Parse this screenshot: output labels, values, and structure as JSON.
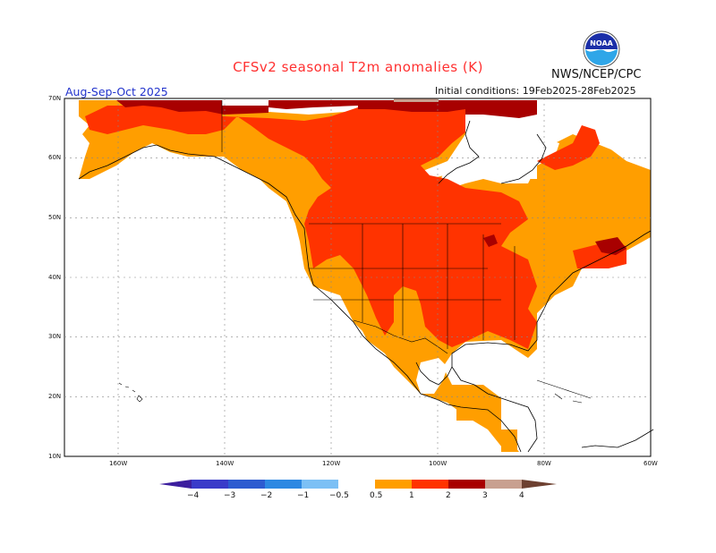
{
  "header": {
    "title": "CFSv2 seasonal T2m anomalies (K)",
    "agency": "NWS/NCEP/CPC",
    "period": "Aug-Sep-Oct 2025",
    "initial_conditions": "Initial conditions: 19Feb2025-28Feb2025",
    "logo_icon": "noaa-logo-icon"
  },
  "axes": {
    "lat_labels": [
      "70N",
      "60N",
      "50N",
      "40N",
      "30N",
      "20N",
      "10N"
    ],
    "lon_labels": [
      "160W",
      "140W",
      "120W",
      "100W",
      "80W",
      "60W"
    ]
  },
  "colorbar": {
    "labels": [
      "−4",
      "−3",
      "−2",
      "−1",
      "−0.5",
      "0.5",
      "1",
      "2",
      "3",
      "4"
    ],
    "colors": [
      "#3c1e9e",
      "#3a3bc9",
      "#2d78d8",
      "#4aa0ea",
      "#7cc0f5",
      "#ffffff",
      "#ff9e00",
      "#ff3300",
      "#a80000",
      "#c8a090",
      "#6d4030"
    ]
  },
  "map_colors": {
    "anom_05_1": "#ff9e00",
    "anom_1_2": "#ff3300",
    "anom_2_3": "#a80000",
    "anom_3_4": "#c8a090",
    "ocean": "#ffffff"
  }
}
